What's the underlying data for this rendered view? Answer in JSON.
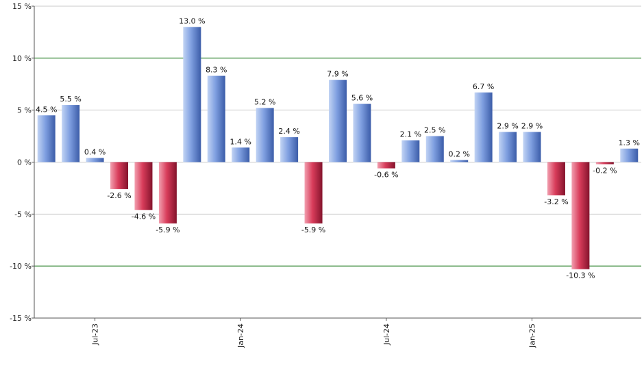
{
  "chart_data": {
    "type": "bar",
    "title": "",
    "xlabel": "",
    "ylabel": "",
    "ylim": [
      -15,
      15
    ],
    "y_ticks": [
      15,
      10,
      5,
      0,
      -5,
      -10,
      -15
    ],
    "y_tick_labels": [
      "15 %",
      "10 %",
      "5 %",
      "0 %",
      "-5 %",
      "-10 %",
      "-15 %"
    ],
    "x_tick_labels": [
      {
        "label": "Jul-23",
        "at_index": 2
      },
      {
        "label": "Jan-24",
        "at_index": 8
      },
      {
        "label": "Jul-24",
        "at_index": 14
      },
      {
        "label": "Jan-25",
        "at_index": 20
      }
    ],
    "values": [
      4.5,
      5.5,
      0.4,
      -2.6,
      -4.6,
      -5.9,
      13.0,
      8.3,
      1.4,
      5.2,
      2.4,
      -5.9,
      7.9,
      5.6,
      -0.6,
      2.1,
      2.5,
      0.2,
      6.7,
      2.9,
      2.9,
      -3.2,
      -10.3,
      -0.2,
      1.3
    ],
    "value_labels": [
      "4.5 %",
      "5.5 %",
      "0.4 %",
      "-2.6 %",
      "-4.6 %",
      "-5.9 %",
      "13.0 %",
      "8.3 %",
      "1.4 %",
      "5.2 %",
      "2.4 %",
      "-5.9 %",
      "7.9 %",
      "5.6 %",
      "-0.6 %",
      "2.1 %",
      "2.5 %",
      "0.2 %",
      "6.7 %",
      "2.9 %",
      "2.9 %",
      "-3.2 %",
      "-10.3 %",
      "-0.2 %",
      "1.3 %"
    ],
    "grid": true,
    "highlight_gridlines": [
      10,
      -10
    ],
    "legend": "none",
    "colors": {
      "positive_light": "#c2d4f4",
      "positive_mid": "#7f9fe0",
      "positive_dark": "#3b5ca8",
      "negative_light": "#f2a0b0",
      "negative_mid": "#d83c5a",
      "negative_dark": "#84132c",
      "grid": "#c8c8c8",
      "highlight_grid": "#1f7a1f",
      "axis": "#555555"
    }
  }
}
